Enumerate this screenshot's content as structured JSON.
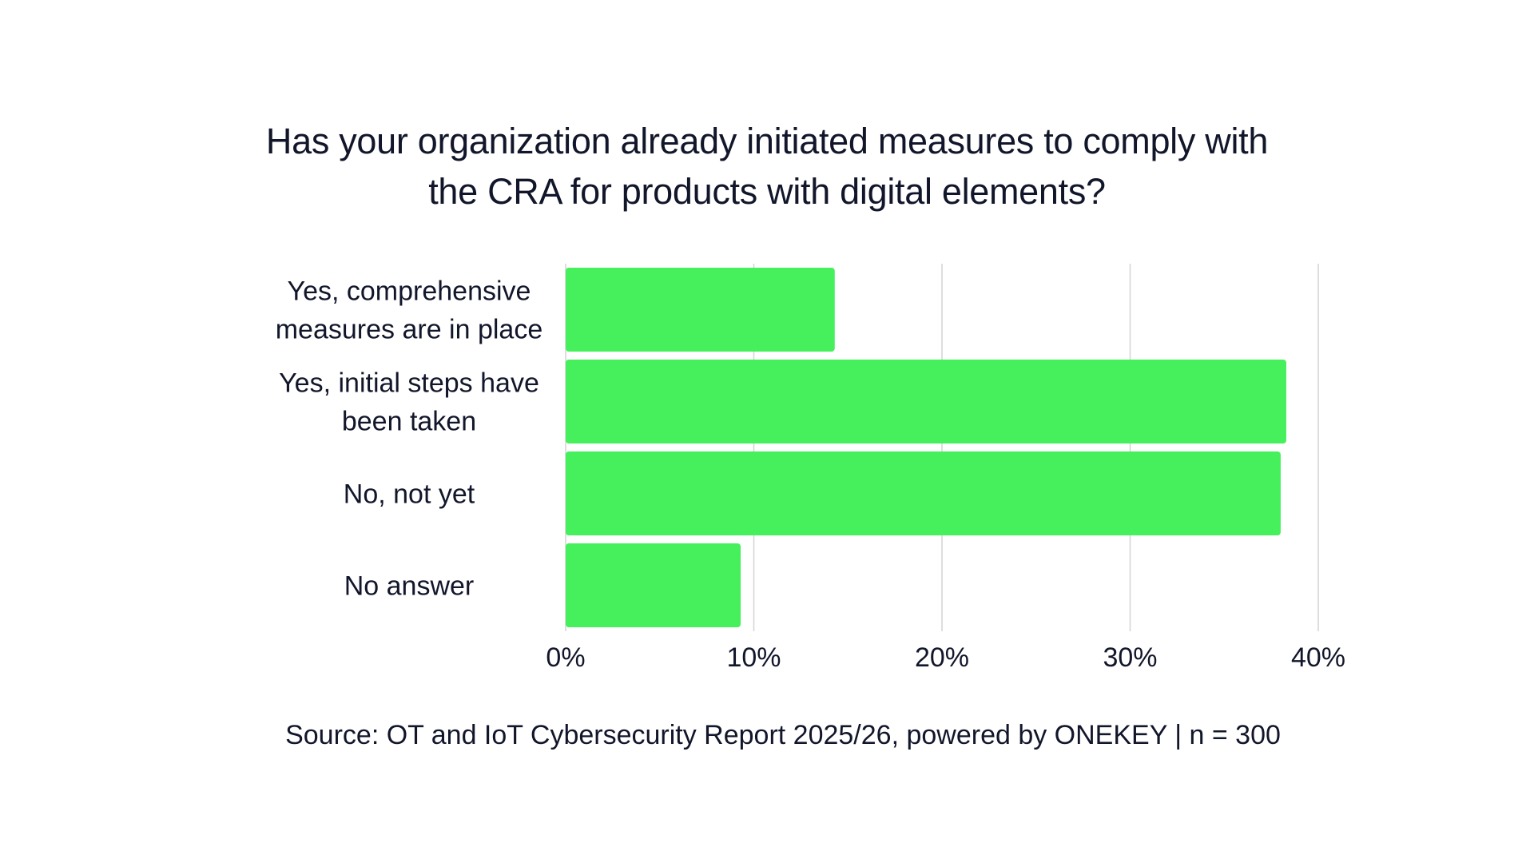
{
  "title_lines": [
    "Has your organization already initiated measures to comply with",
    "the CRA for products with digital elements?"
  ],
  "source": "Source: OT and IoT Cybersecurity Report 2025/26, powered by ONEKEY | n = 300",
  "colors": {
    "bar": "#45f05c",
    "grid": "#d4d4d4",
    "text": "#12162a"
  },
  "chart_data": {
    "type": "bar",
    "orientation": "horizontal",
    "title": "Has your organization already initiated measures to comply with the CRA for products with digital elements?",
    "categories": [
      [
        "Yes, comprehensive",
        "measures are in place"
      ],
      [
        "Yes, initial steps have",
        "been taken"
      ],
      [
        "No, not yet"
      ],
      [
        "No answer"
      ]
    ],
    "values": [
      14.3,
      38.3,
      38.0,
      9.3
    ],
    "xlim": [
      0,
      40
    ],
    "xticks": [
      0,
      10,
      20,
      30,
      40
    ],
    "xtick_labels": [
      "0%",
      "10%",
      "20%",
      "30%",
      "40%"
    ],
    "grid": "vertical",
    "legend": "none"
  }
}
